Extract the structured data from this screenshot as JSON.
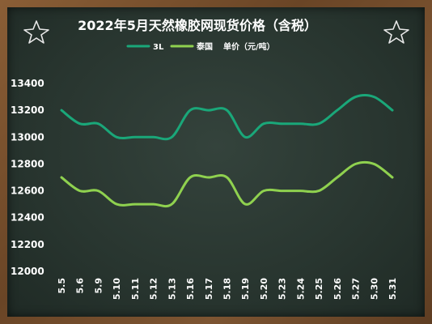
{
  "chart_data": {
    "type": "line",
    "title": "2022年5月天然橡胶网现货价格（含税）",
    "unit_note": "单价（元/吨）",
    "x": [
      "5.5",
      "5.6",
      "5.9",
      "5.10",
      "5.11",
      "5.12",
      "5.13",
      "5.16",
      "5.17",
      "5.18",
      "5.19",
      "5.20",
      "5.23",
      "5.24",
      "5.25",
      "5.26",
      "5.27",
      "5.30",
      "5.31"
    ],
    "series": [
      {
        "name": "3L",
        "color": "#1aa779",
        "values": [
          13200,
          13100,
          13100,
          13000,
          13000,
          13000,
          13000,
          13200,
          13200,
          13200,
          13000,
          13100,
          13100,
          13100,
          13100,
          13200,
          13300,
          13300,
          13200
        ]
      },
      {
        "name": "泰国",
        "color": "#8fd14f",
        "values": [
          12700,
          12600,
          12600,
          12500,
          12500,
          12500,
          12500,
          12700,
          12700,
          12700,
          12500,
          12600,
          12600,
          12600,
          12600,
          12700,
          12800,
          12800,
          12700
        ]
      }
    ],
    "ylim": [
      12000,
      13400
    ],
    "yticks": [
      "12000",
      "12200",
      "12400",
      "12600",
      "12800",
      "13000",
      "13200",
      "13400"
    ],
    "grid": false,
    "legend_position": "top-center"
  }
}
